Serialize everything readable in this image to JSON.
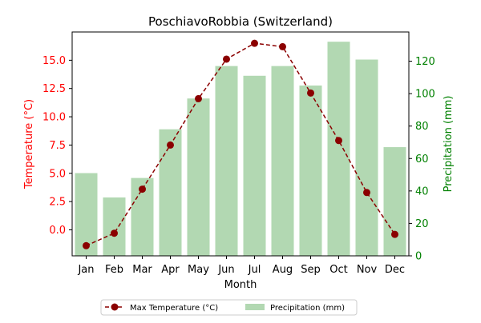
{
  "chart_data": {
    "type": "bar+line",
    "title": "PoschiavoRobbia (Switzerland)",
    "xlabel": "Month",
    "ylabel_left": "Temperature (°C)",
    "ylabel_right": "Precipitation (mm)",
    "categories": [
      "Jan",
      "Feb",
      "Mar",
      "Apr",
      "May",
      "Jun",
      "Jul",
      "Aug",
      "Sep",
      "Oct",
      "Nov",
      "Dec"
    ],
    "series": [
      {
        "name": "Max Temperature (°C)",
        "type": "line",
        "axis": "left",
        "values": [
          -1.4,
          -0.3,
          3.6,
          7.5,
          11.6,
          15.1,
          16.5,
          16.2,
          12.1,
          7.9,
          3.3,
          -0.4
        ],
        "color": "#8b0000"
      },
      {
        "name": "Precipitation (mm)",
        "type": "bar",
        "axis": "right",
        "values": [
          51,
          36,
          48,
          78,
          97,
          117,
          111,
          117,
          105,
          132,
          121,
          67
        ],
        "color": "#b2d8b2"
      }
    ],
    "ylim_left": [
      -2.3,
      17.5
    ],
    "yticks_left": [
      0.0,
      2.5,
      5.0,
      7.5,
      10.0,
      12.5,
      15.0
    ],
    "yticks_left_labels": [
      "0.0",
      "2.5",
      "5.0",
      "7.5",
      "10.0",
      "12.5",
      "15.0"
    ],
    "ylim_right": [
      0,
      138
    ],
    "yticks_right": [
      0,
      20,
      40,
      60,
      80,
      100,
      120
    ],
    "yticks_right_labels": [
      "0",
      "20",
      "40",
      "60",
      "80",
      "100",
      "120"
    ],
    "left_axis_color": "#ff0000",
    "right_axis_color": "#008000",
    "legend_position": "bottom-center",
    "grid": false
  }
}
